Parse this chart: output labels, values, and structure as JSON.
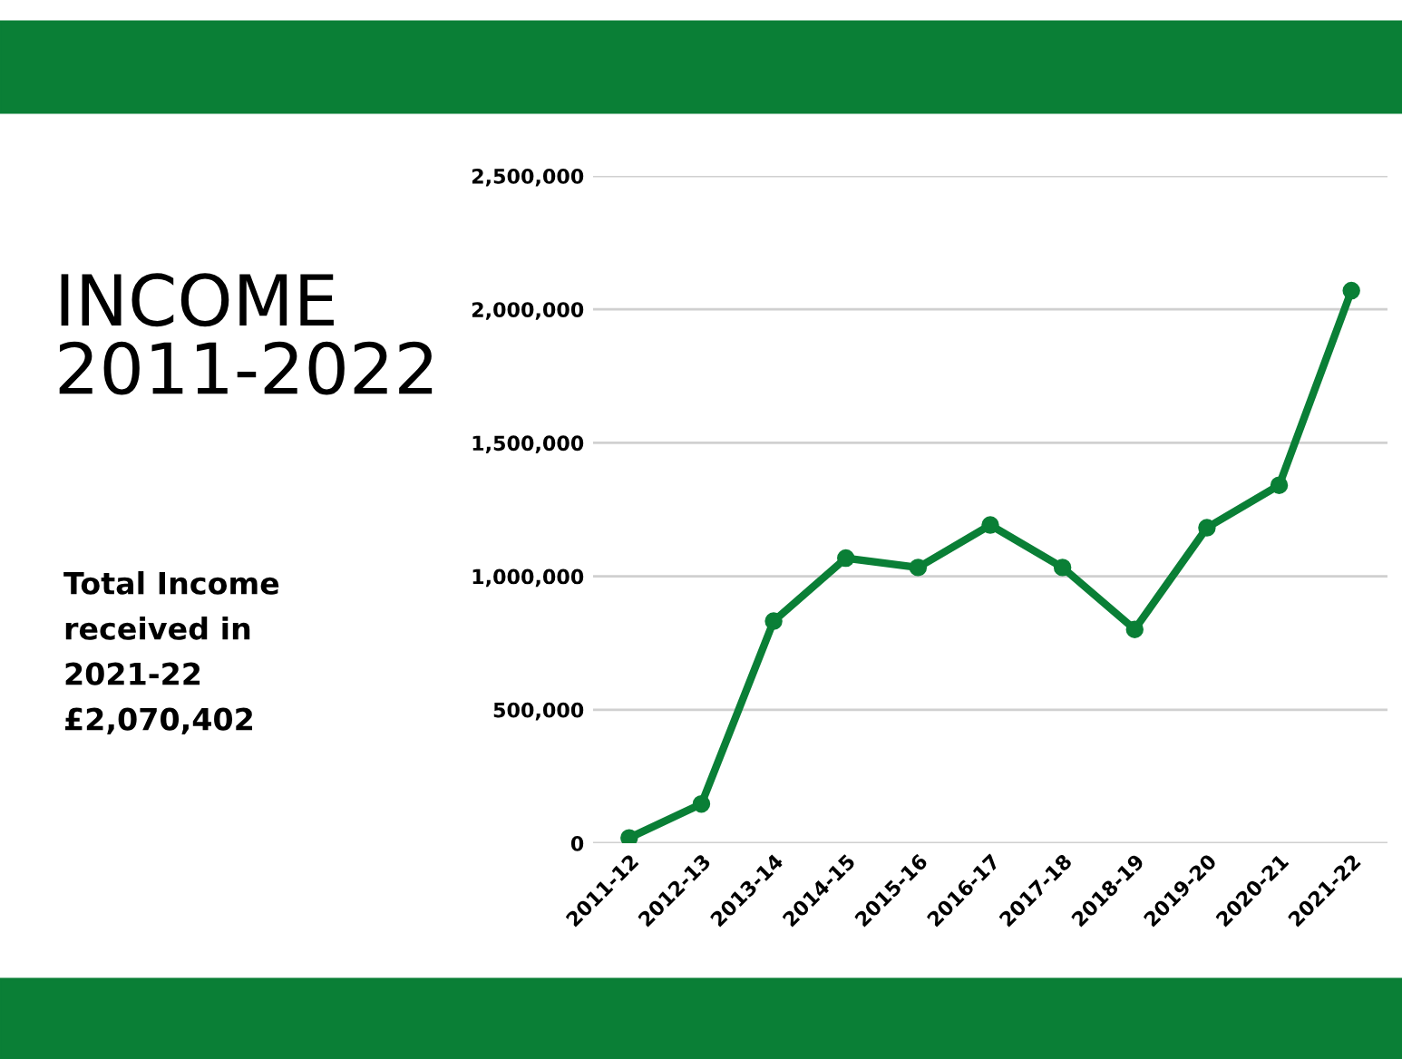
{
  "chart_data": {
    "type": "line",
    "title": "INCOME\n2011-2022",
    "categories": [
      "2011-12",
      "2012-13",
      "2013-14",
      "2014-15",
      "2015-16",
      "2016-17",
      "2017-18",
      "2018-19",
      "2019-20",
      "2020-21",
      "2021-22"
    ],
    "series": [
      {
        "color": "#0a7f36",
        "values": [
          20000,
          147000,
          832000,
          1068000,
          1033000,
          1192000,
          1033000,
          801000,
          1182000,
          1341000,
          2070000
        ]
      }
    ],
    "ylim": [
      0,
      2500000
    ],
    "yticks": [
      {
        "value": 0,
        "label": "0"
      },
      {
        "value": 500000,
        "label": "500,000"
      },
      {
        "value": 1000000,
        "label": "1,000,000"
      },
      {
        "value": 1500000,
        "label": "1,500,000"
      },
      {
        "value": 2000000,
        "label": "2,000,000"
      },
      {
        "value": 2500000,
        "label": "2,500,000"
      }
    ],
    "grid": "y",
    "marker": "circle",
    "line_style": "solid",
    "annotations": [
      "Total Income\nreceived in\n2021-22\n£2,070,402"
    ]
  }
}
